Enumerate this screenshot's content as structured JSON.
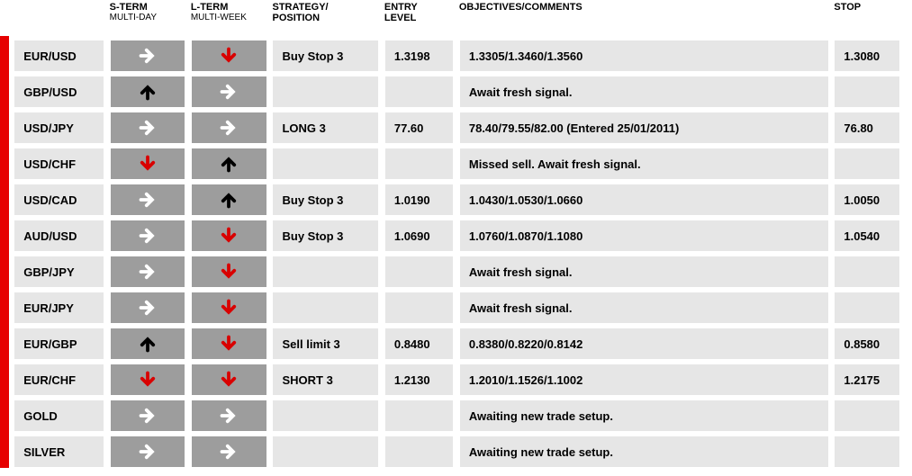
{
  "headers": {
    "sterm": "S-TERM",
    "sterm_sub": "MULTI-DAY",
    "lterm": "L-TERM",
    "lterm_sub": "MULTI-WEEK",
    "strategy": "STRATEGY/",
    "strategy2": "POSITION",
    "entry": "ENTRY",
    "entry2": "LEVEL",
    "objectives": "OBJECTIVES/COMMENTS",
    "stop": "STOP"
  },
  "colors": {
    "accent": "#e60000",
    "arrow_right": "#ffffff",
    "arrow_up": "#000000",
    "arrow_down": "#d90000",
    "cell_dark": "#9d9d9d",
    "cell_light": "#e6e6e6"
  },
  "rows": [
    {
      "pair": "EUR/USD",
      "sterm": "right",
      "lterm": "down",
      "strategy": "Buy Stop 3",
      "entry": "1.3198",
      "objectives": "1.3305/1.3460/1.3560",
      "stop": "1.3080"
    },
    {
      "pair": "GBP/USD",
      "sterm": "up",
      "lterm": "right",
      "strategy": "",
      "entry": "",
      "objectives": "Await fresh signal.",
      "stop": ""
    },
    {
      "pair": "USD/JPY",
      "sterm": "right",
      "lterm": "right",
      "strategy": "LONG 3",
      "entry": "77.60",
      "objectives": "78.40/79.55/82.00 (Entered 25/01/2011)",
      "stop": "76.80"
    },
    {
      "pair": "USD/CHF",
      "sterm": "down",
      "lterm": "up",
      "strategy": "",
      "entry": "",
      "objectives": "Missed sell.  Await fresh signal.",
      "stop": ""
    },
    {
      "pair": "USD/CAD",
      "sterm": "right",
      "lterm": "up",
      "strategy": "Buy Stop 3",
      "entry": "1.0190",
      "objectives": "1.0430/1.0530/1.0660",
      "stop": "1.0050"
    },
    {
      "pair": "AUD/USD",
      "sterm": "right",
      "lterm": "down",
      "strategy": "Buy Stop 3",
      "entry": "1.0690",
      "objectives": "1.0760/1.0870/1.1080",
      "stop": "1.0540"
    },
    {
      "pair": "GBP/JPY",
      "sterm": "right",
      "lterm": "down",
      "strategy": "",
      "entry": "",
      "objectives": "Await fresh signal.",
      "stop": ""
    },
    {
      "pair": "EUR/JPY",
      "sterm": "right",
      "lterm": "down",
      "strategy": "",
      "entry": "",
      "objectives": "Await fresh signal.",
      "stop": ""
    },
    {
      "pair": "EUR/GBP",
      "sterm": "up",
      "lterm": "down",
      "strategy": "Sell limit 3",
      "entry": "0.8480",
      "objectives": "0.8380/0.8220/0.8142",
      "stop": "0.8580"
    },
    {
      "pair": "EUR/CHF",
      "sterm": "down",
      "lterm": "down",
      "strategy": "SHORT 3",
      "entry": "1.2130",
      "objectives": "1.2010/1.1526/1.1002",
      "stop": "1.2175"
    },
    {
      "pair": "GOLD",
      "sterm": "right",
      "lterm": "right",
      "strategy": "",
      "entry": "",
      "objectives": "Awaiting new trade setup.",
      "stop": ""
    },
    {
      "pair": "SILVER",
      "sterm": "right",
      "lterm": "right",
      "strategy": "",
      "entry": "",
      "objectives": "Awaiting new trade setup.",
      "stop": ""
    }
  ]
}
